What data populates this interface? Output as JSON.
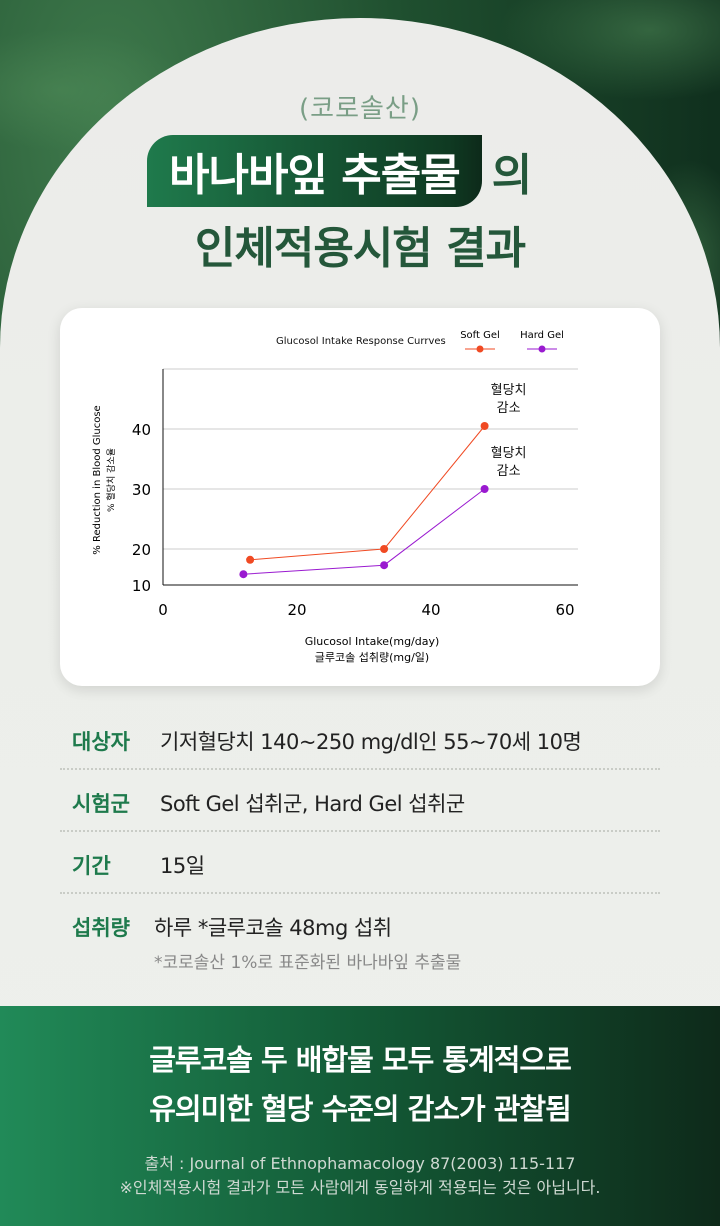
{
  "header": {
    "subtitle": "(코로솔산)",
    "title_highlight": "바나바잎 추출물",
    "title_suffix": "의",
    "title_line2": "인체적용시험 결과"
  },
  "colors": {
    "brand_green": "#1f7a4c",
    "title_text": "#24573a",
    "soft_gel": "#f04a23",
    "hard_gel": "#9a1ad0"
  },
  "chart_data": {
    "type": "line",
    "title": "Glucosol Intake Response Currves",
    "xlabel": "Glucosol Intake(mg/day)",
    "xlabel_ko": "글루코솔 섭취량(mg/일)",
    "ylabel": "% Reduction in Blood Glucose",
    "ylabel_ko": "% 혈당치 감소율",
    "xlim": [
      0,
      60
    ],
    "xticks": [
      "0",
      "20",
      "40",
      "60"
    ],
    "ylim": [
      10,
      50
    ],
    "yticks": [
      "10",
      "20",
      "30",
      "40"
    ],
    "grid": true,
    "legend": "top-right",
    "series": [
      {
        "name": "Soft Gel",
        "color": "#f04a23",
        "x": [
          13,
          33,
          48
        ],
        "y": [
          17,
          20,
          40.5
        ],
        "annotation": [
          "혈당치",
          "감소"
        ]
      },
      {
        "name": "Hard Gel",
        "color": "#9a1ad0",
        "x": [
          12,
          33,
          48
        ],
        "y": [
          13,
          15.5,
          30
        ],
        "annotation": [
          "혈당치",
          "감소"
        ]
      }
    ]
  },
  "info": [
    {
      "label": "대상자",
      "value": "기저혈당치 140~250 mg/dl인 55~70세 10명"
    },
    {
      "label": "시험군",
      "value": "Soft Gel 섭취군, Hard Gel 섭취군"
    },
    {
      "label": "기간",
      "value": "15일"
    },
    {
      "label": "섭취량",
      "value": "하루 *글루코솔 48mg 섭취",
      "note": "*코로솔산 1%로 표준화된 바나바잎 추출물"
    }
  ],
  "footer": {
    "line1": "글루코솔 두 배합물 모두 통계적으로",
    "line2": "유의미한 혈당 수준의 감소가 관찰됨",
    "source": "출처 : Journal of Ethnophamacology 87(2003) 115-117",
    "disclaimer": "※인체적용시험 결과가 모든 사람에게 동일하게 적용되는 것은 아닙니다."
  }
}
